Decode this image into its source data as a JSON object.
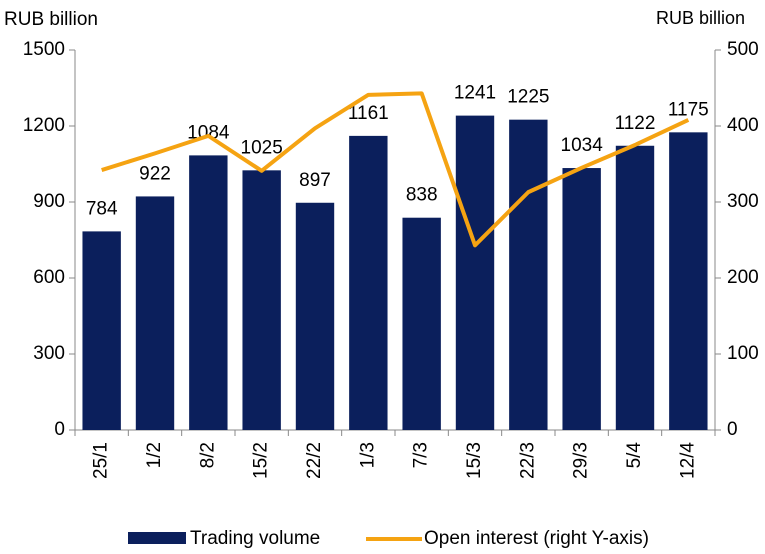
{
  "chart_data": {
    "type": "bar_line",
    "y_label": "RUB billion",
    "y2_label": "RUB billion",
    "categories": [
      "25/1",
      "1/2",
      "8/2",
      "15/2",
      "22/2",
      "1/3",
      "7/3",
      "15/3",
      "22/3",
      "29/3",
      "5/4",
      "12/4"
    ],
    "series": [
      {
        "name": "Trading volume",
        "type": "bar",
        "color": "#0b1f5c",
        "values": [
          784,
          922,
          1084,
          1025,
          897,
          1161,
          838,
          1241,
          1225,
          1034,
          1122,
          1175
        ]
      },
      {
        "name": "Open interest (right Y-axis)",
        "type": "line",
        "axis": "y2",
        "color": "#f5a312",
        "values": [
          342,
          364,
          387,
          341,
          397,
          441,
          443,
          243,
          313,
          345,
          375,
          408
        ]
      }
    ],
    "ylim": [
      0,
      1500
    ],
    "yticks": [
      0,
      300,
      600,
      900,
      1200,
      1500
    ],
    "y2lim": [
      0,
      500
    ],
    "y2ticks": [
      0,
      100,
      200,
      300,
      400,
      500
    ],
    "legend": "bottom"
  }
}
